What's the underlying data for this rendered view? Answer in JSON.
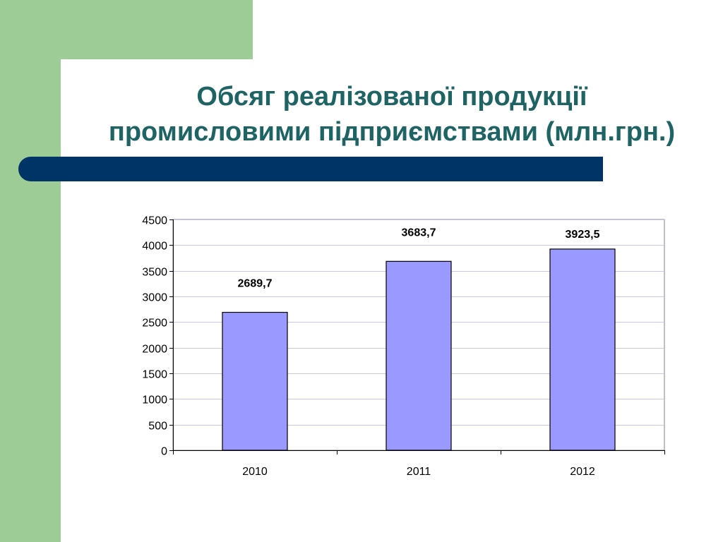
{
  "slide": {
    "title_line1": "Обсяг реалізованої продукції",
    "title_line2": "промисловими підприємствами (млн.грн.)"
  },
  "colors": {
    "accent_green": "#9dcc96",
    "title_text": "#1e6464",
    "title_bar": "#003366",
    "bar_fill": "#9999ff",
    "gridline": "#c8c8ee"
  },
  "chart_data": {
    "type": "bar",
    "categories": [
      "2010",
      "2011",
      "2012"
    ],
    "values": [
      2689.7,
      3683.7,
      3923.5
    ],
    "data_labels": [
      "2689,7",
      "3683,7",
      "3923,5"
    ],
    "ylim": [
      0,
      4500
    ],
    "yticks": [
      0,
      500,
      1000,
      1500,
      2000,
      2500,
      3000,
      3500,
      4000,
      4500
    ],
    "grid": true,
    "legend": "none"
  }
}
